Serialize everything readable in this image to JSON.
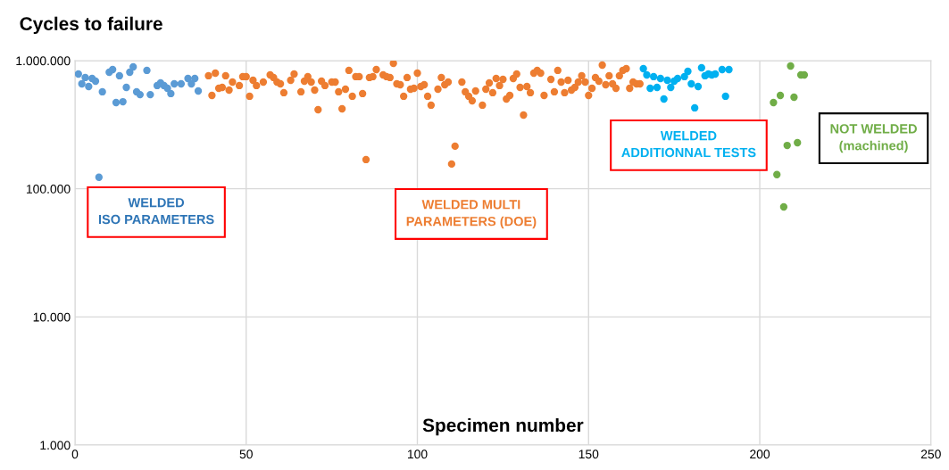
{
  "chart_data": {
    "type": "scatter",
    "title": "Cycles to failure",
    "xlabel": "Specimen number",
    "xlim": [
      0,
      250
    ],
    "xticks": [
      0,
      50,
      100,
      150,
      200,
      250
    ],
    "ylim": [
      1000,
      1000000
    ],
    "yticks": [
      {
        "value": 1000,
        "label": "1.000"
      },
      {
        "value": 10000,
        "label": "10.000"
      },
      {
        "value": 100000,
        "label": "100.000"
      },
      {
        "value": 1000000,
        "label": "1.000.000"
      }
    ],
    "log": "y",
    "grid": true,
    "legend": false,
    "marker": "circle",
    "annotations": [
      "WELDED\nISO PARAMETERS",
      "WELDED MULTI\nPARAMETERS (DOE)",
      "WELDED\nADDITIONNAL TESTS",
      "NOT WELDED\n(machined)"
    ],
    "series": [
      {
        "color": "#5b9bd5",
        "x": [
          1,
          2,
          3,
          4,
          5,
          6,
          7,
          8,
          10,
          11,
          12,
          13,
          14,
          15,
          16,
          17,
          18,
          19,
          21,
          22,
          24,
          25,
          26,
          27,
          28,
          29,
          31,
          33,
          34,
          35,
          36
        ],
        "values": [
          786000,
          659000,
          738000,
          628000,
          726000,
          692000,
          123000,
          571000,
          812000,
          852000,
          471000,
          762000,
          478000,
          618000,
          812000,
          894000,
          571000,
          543000,
          839000,
          543000,
          639000,
          670000,
          639000,
          608000,
          553000,
          659000,
          659000,
          726000,
          659000,
          726000,
          580000
        ]
      },
      {
        "color": "#ed7d31",
        "x": [
          39,
          40,
          41,
          42,
          43,
          44,
          45,
          46,
          48,
          49,
          50,
          51,
          52,
          53,
          55,
          57,
          58,
          59,
          60,
          61,
          63,
          64,
          66,
          67,
          68,
          69,
          70,
          71,
          72,
          73,
          75,
          76,
          77,
          78,
          79,
          80,
          81,
          82,
          83,
          84,
          85,
          86,
          87,
          88,
          90,
          91,
          92,
          93,
          94,
          95,
          96,
          97,
          98,
          99,
          100,
          101,
          102,
          103,
          104,
          106,
          107,
          108,
          109,
          110,
          111,
          113,
          114,
          115,
          116,
          117,
          119,
          120,
          121,
          122,
          123,
          124,
          125,
          126,
          127,
          128,
          129,
          130,
          131,
          132,
          133,
          134,
          135,
          136,
          137,
          139,
          140,
          141,
          142,
          143,
          144,
          145,
          146,
          147,
          148,
          149,
          150,
          151,
          152,
          153,
          154,
          155,
          156,
          157,
          158,
          159,
          160,
          161,
          162,
          163,
          164,
          165
        ],
        "values": [
          762000,
          535000,
          799000,
          608000,
          618000,
          762000,
          589000,
          681000,
          639000,
          750000,
          750000,
          527000,
          703000,
          639000,
          681000,
          774000,
          738000,
          681000,
          659000,
          562000,
          703000,
          786000,
          571000,
          692000,
          750000,
          681000,
          589000,
          414000,
          692000,
          639000,
          681000,
          681000,
          571000,
          421000,
          599000,
          839000,
          527000,
          750000,
          750000,
          553000,
          169000,
          738000,
          750000,
          852000,
          774000,
          750000,
          738000,
          953000,
          659000,
          649000,
          527000,
          738000,
          599000,
          608000,
          799000,
          628000,
          649000,
          527000,
          449000,
          599000,
          738000,
          649000,
          681000,
          156000,
          215000,
          681000,
          571000,
          527000,
          486000,
          580000,
          449000,
          599000,
          670000,
          562000,
          726000,
          639000,
          714000,
          502000,
          535000,
          726000,
          786000,
          618000,
          376000,
          628000,
          562000,
          799000,
          839000,
          799000,
          535000,
          714000,
          571000,
          839000,
          681000,
          562000,
          703000,
          589000,
          618000,
          681000,
          762000,
          681000,
          535000,
          608000,
          738000,
          692000,
          923000,
          649000,
          762000,
          659000,
          608000,
          762000,
          839000,
          866000,
          608000,
          681000,
          659000,
          659000
        ]
      },
      {
        "color": "#00b0f0",
        "x": [
          166,
          167,
          168,
          169,
          170,
          171,
          172,
          173,
          174,
          175,
          176,
          178,
          179,
          180,
          181,
          182,
          183,
          184,
          185,
          186,
          187,
          189,
          190,
          191
        ],
        "values": [
          866000,
          774000,
          608000,
          750000,
          618000,
          726000,
          502000,
          703000,
          618000,
          692000,
          726000,
          750000,
          825000,
          659000,
          428000,
          628000,
          880000,
          762000,
          786000,
          774000,
          786000,
          852000,
          527000,
          852000
        ]
      },
      {
        "color": "#70ad47",
        "x": [
          204,
          205,
          206,
          207,
          208,
          209,
          210,
          211,
          212,
          213
        ],
        "values": [
          471000,
          129000,
          535000,
          72200,
          218000,
          908000,
          518000,
          229000,
          774000,
          774000
        ]
      }
    ]
  }
}
